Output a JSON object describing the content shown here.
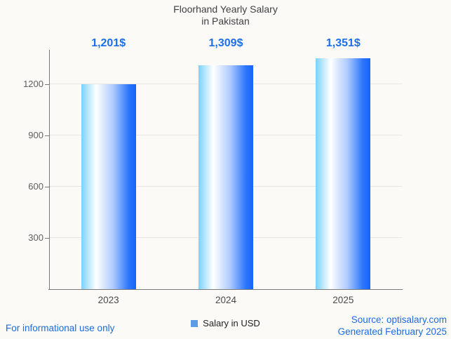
{
  "chart_data": {
    "type": "bar",
    "title": "Floorhand Yearly Salary in Pakistan",
    "title_lines": [
      "Floorhand Yearly Salary",
      "in Pakistan"
    ],
    "categories": [
      "2023",
      "2024",
      "2025"
    ],
    "values": [
      1201,
      1309,
      1351
    ],
    "value_labels": [
      "1,201$",
      "1,309$",
      "1,351$"
    ],
    "series_name": "Salary in USD",
    "xlabel": "",
    "ylabel": "",
    "yticks": [
      300,
      600,
      900,
      1200
    ],
    "ylim": [
      0,
      1400
    ],
    "grid": true,
    "legend_position": "bottom",
    "colors": {
      "bar_gradient": [
        "#7ad2fb",
        "#ffffff",
        "#aecbfe",
        "#2e77fc",
        "#1464f9"
      ],
      "value_label": "#1c6fe8",
      "legend_swatch": "#5c9ce6",
      "grid": "#e8e6e0",
      "axis": "#7a7a7a",
      "title_text": "#3f4043",
      "footer_text": "#1c6ce0",
      "background": "#fbfaf6"
    }
  },
  "footer": {
    "left_note": "For informational use only",
    "source_line": "Source: optisalary.com",
    "generated_line": "Generated February 2025"
  }
}
